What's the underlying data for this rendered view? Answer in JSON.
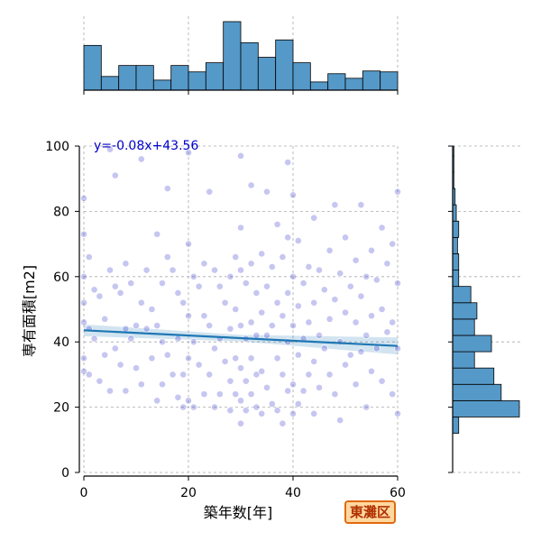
{
  "chart_data": {
    "type": "scatter",
    "xlabel": "築年数[年]",
    "ylabel": "専有面積[m2]",
    "xlim": [
      0,
      60
    ],
    "ylim": [
      0,
      100
    ],
    "x_ticks": [
      0,
      20,
      40,
      60
    ],
    "y_ticks": [
      0,
      20,
      40,
      60,
      80,
      100
    ],
    "grid": true,
    "regression": {
      "slope": -0.08,
      "intercept": 43.56,
      "label": "y=-0.08x+43.56"
    },
    "points": [
      [
        0,
        84
      ],
      [
        0,
        73
      ],
      [
        0,
        60
      ],
      [
        0,
        52
      ],
      [
        0,
        46
      ],
      [
        0,
        35
      ],
      [
        0,
        31
      ],
      [
        1,
        66
      ],
      [
        1,
        44
      ],
      [
        1,
        30
      ],
      [
        2,
        56
      ],
      [
        2,
        41
      ],
      [
        3,
        54
      ],
      [
        3,
        28
      ],
      [
        4,
        47
      ],
      [
        4,
        36
      ],
      [
        5,
        99
      ],
      [
        5,
        62
      ],
      [
        5,
        25
      ],
      [
        6,
        91
      ],
      [
        6,
        57
      ],
      [
        6,
        38
      ],
      [
        7,
        55
      ],
      [
        7,
        33
      ],
      [
        8,
        64
      ],
      [
        8,
        44
      ],
      [
        8,
        25
      ],
      [
        9,
        58
      ],
      [
        9,
        41
      ],
      [
        10,
        45
      ],
      [
        10,
        32
      ],
      [
        11,
        96
      ],
      [
        11,
        52
      ],
      [
        11,
        27
      ],
      [
        12,
        62
      ],
      [
        12,
        44
      ],
      [
        13,
        50
      ],
      [
        13,
        35
      ],
      [
        14,
        73
      ],
      [
        14,
        45
      ],
      [
        14,
        22
      ],
      [
        15,
        58
      ],
      [
        15,
        40
      ],
      [
        15,
        27
      ],
      [
        16,
        87
      ],
      [
        16,
        66
      ],
      [
        16,
        36
      ],
      [
        17,
        62
      ],
      [
        17,
        30
      ],
      [
        18,
        55
      ],
      [
        18,
        41
      ],
      [
        18,
        23
      ],
      [
        19,
        52
      ],
      [
        19,
        30
      ],
      [
        19,
        20
      ],
      [
        20,
        98
      ],
      [
        20,
        70
      ],
      [
        20,
        48
      ],
      [
        20,
        35
      ],
      [
        20,
        22
      ],
      [
        21,
        60
      ],
      [
        21,
        40
      ],
      [
        21,
        20
      ],
      [
        22,
        57
      ],
      [
        22,
        33
      ],
      [
        23,
        64
      ],
      [
        23,
        48
      ],
      [
        23,
        24
      ],
      [
        24,
        86
      ],
      [
        24,
        45
      ],
      [
        24,
        30
      ],
      [
        25,
        62
      ],
      [
        25,
        38
      ],
      [
        25,
        20
      ],
      [
        26,
        57
      ],
      [
        26,
        41
      ],
      [
        26,
        24
      ],
      [
        27,
        52
      ],
      [
        27,
        34
      ],
      [
        28,
        60
      ],
      [
        28,
        44
      ],
      [
        28,
        28
      ],
      [
        28,
        19
      ],
      [
        29,
        66
      ],
      [
        29,
        50
      ],
      [
        29,
        35
      ],
      [
        29,
        24
      ],
      [
        30,
        97
      ],
      [
        30,
        75
      ],
      [
        30,
        62
      ],
      [
        30,
        45
      ],
      [
        30,
        32
      ],
      [
        30,
        22
      ],
      [
        30,
        15
      ],
      [
        31,
        58
      ],
      [
        31,
        41
      ],
      [
        31,
        28
      ],
      [
        31,
        19
      ],
      [
        32,
        88
      ],
      [
        32,
        64
      ],
      [
        32,
        46
      ],
      [
        32,
        35
      ],
      [
        32,
        24
      ],
      [
        33,
        55
      ],
      [
        33,
        42
      ],
      [
        33,
        30
      ],
      [
        33,
        20
      ],
      [
        34,
        67
      ],
      [
        34,
        49
      ],
      [
        34,
        31
      ],
      [
        34,
        18
      ],
      [
        35,
        86
      ],
      [
        35,
        57
      ],
      [
        35,
        42
      ],
      [
        35,
        26
      ],
      [
        36,
        63
      ],
      [
        36,
        45
      ],
      [
        36,
        21
      ],
      [
        37,
        76
      ],
      [
        37,
        52
      ],
      [
        37,
        35
      ],
      [
        37,
        19
      ],
      [
        38,
        66
      ],
      [
        38,
        48
      ],
      [
        38,
        30
      ],
      [
        38,
        15
      ],
      [
        39,
        95
      ],
      [
        39,
        72
      ],
      [
        39,
        55
      ],
      [
        39,
        40
      ],
      [
        39,
        25
      ],
      [
        40,
        85
      ],
      [
        40,
        60
      ],
      [
        40,
        45
      ],
      [
        40,
        27
      ],
      [
        40,
        18
      ],
      [
        41,
        71
      ],
      [
        41,
        51
      ],
      [
        41,
        36
      ],
      [
        41,
        21
      ],
      [
        42,
        58
      ],
      [
        42,
        41
      ],
      [
        42,
        25
      ],
      [
        43,
        63
      ],
      [
        43,
        46
      ],
      [
        43,
        30
      ],
      [
        44,
        78
      ],
      [
        44,
        52
      ],
      [
        44,
        34
      ],
      [
        44,
        18
      ],
      [
        45,
        62
      ],
      [
        45,
        42
      ],
      [
        45,
        26
      ],
      [
        46,
        56
      ],
      [
        46,
        38
      ],
      [
        47,
        68
      ],
      [
        47,
        47
      ],
      [
        47,
        30
      ],
      [
        48,
        82
      ],
      [
        48,
        53
      ],
      [
        48,
        24
      ],
      [
        49,
        61
      ],
      [
        49,
        40
      ],
      [
        49,
        16
      ],
      [
        50,
        72
      ],
      [
        50,
        49
      ],
      [
        50,
        33
      ],
      [
        51,
        57
      ],
      [
        51,
        36
      ],
      [
        52,
        65
      ],
      [
        52,
        46
      ],
      [
        52,
        27
      ],
      [
        53,
        82
      ],
      [
        53,
        54
      ],
      [
        53,
        37
      ],
      [
        54,
        60
      ],
      [
        54,
        42
      ],
      [
        54,
        20
      ],
      [
        55,
        68
      ],
      [
        55,
        48
      ],
      [
        55,
        31
      ],
      [
        56,
        59
      ],
      [
        56,
        38
      ],
      [
        57,
        75
      ],
      [
        57,
        50
      ],
      [
        57,
        28
      ],
      [
        58,
        64
      ],
      [
        58,
        43
      ],
      [
        59,
        70
      ],
      [
        59,
        46
      ],
      [
        59,
        24
      ],
      [
        60,
        86
      ],
      [
        60,
        58
      ],
      [
        60,
        38
      ],
      [
        60,
        18
      ]
    ],
    "hist_x": {
      "bins": [
        0,
        3.33,
        6.67,
        10,
        13.33,
        16.67,
        20,
        23.33,
        26.67,
        30,
        33.33,
        36.67,
        40,
        43.33,
        46.67,
        50,
        53.33,
        56.67,
        60
      ],
      "counts": [
        49,
        15,
        27,
        27,
        11,
        27,
        20,
        30,
        75,
        52,
        36,
        55,
        30,
        9,
        18,
        13,
        21,
        20
      ]
    },
    "hist_y": {
      "bins": [
        12,
        17,
        22,
        27,
        32,
        37,
        42,
        47,
        52,
        57,
        62,
        67,
        72,
        77,
        82,
        87,
        92,
        97,
        100
      ],
      "counts": [
        5,
        55,
        40,
        34,
        18,
        32,
        18,
        20,
        15,
        5,
        5,
        4,
        5,
        3,
        2,
        1,
        1,
        1
      ]
    },
    "colors": {
      "point": "#3333cc",
      "line": "#1f77b4",
      "hist": "#5599c8",
      "eq": "#0000cc"
    }
  },
  "legend_badge": "東灘区"
}
